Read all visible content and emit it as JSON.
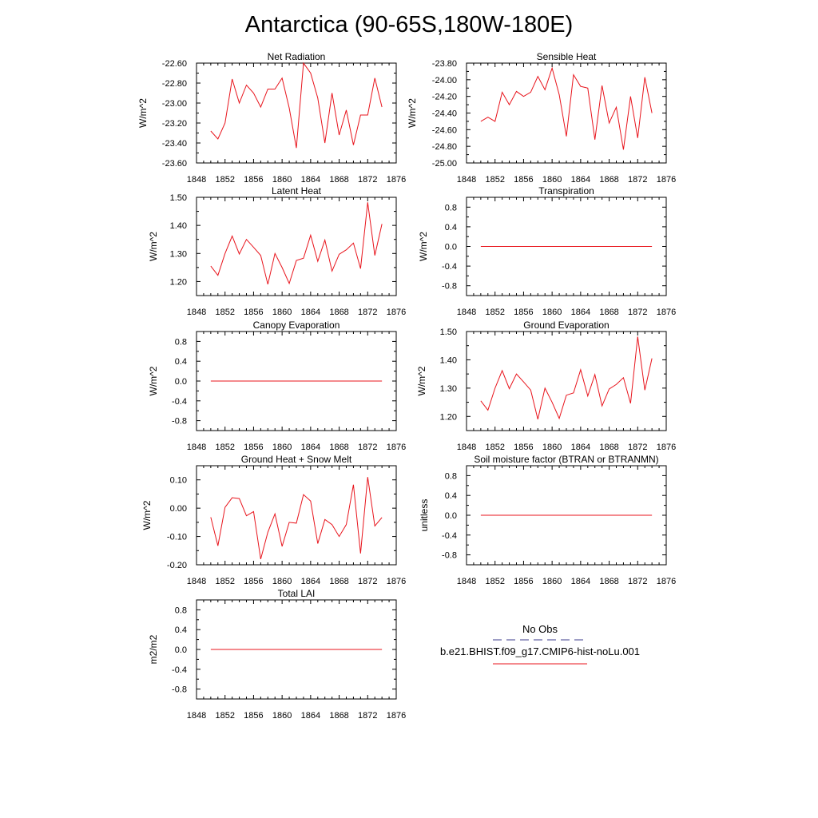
{
  "figure": {
    "title": "Antarctica (90-65S,180W-180E)"
  },
  "colors": {
    "model_line": "#e8141c",
    "obs_line": "#3c3c8c",
    "axis": "#000000"
  },
  "legend": {
    "obs_label": "No Obs",
    "model_label": "b.e21.BHIST.f09_g17.CMIP6-hist-noLu.001"
  },
  "chart_data": [
    {
      "type": "line",
      "title": "Net Radiation",
      "ylabel": "W/m^2",
      "xlim": [
        1848,
        1876
      ],
      "xticks": [
        1848,
        1852,
        1856,
        1860,
        1864,
        1868,
        1872,
        1876
      ],
      "ylim": [
        -23.6,
        -22.6
      ],
      "yticks": [
        "-22.60",
        "-22.80",
        "-23.00",
        "-23.20",
        "-23.40",
        "-23.60"
      ],
      "x": [
        1850,
        1851,
        1852,
        1853,
        1854,
        1855,
        1856,
        1857,
        1858,
        1859,
        1860,
        1861,
        1862,
        1863,
        1864,
        1865,
        1866,
        1867,
        1868,
        1869,
        1870,
        1871,
        1872,
        1873,
        1874
      ],
      "series": [
        {
          "values": [
            -23.28,
            -23.36,
            -23.2,
            -22.76,
            -23.0,
            -22.82,
            -22.9,
            -23.04,
            -22.86,
            -22.86,
            -22.75,
            -23.05,
            -23.45,
            -22.6,
            -22.7,
            -22.95,
            -23.4,
            -22.9,
            -23.32,
            -23.07,
            -23.42,
            -23.12,
            -23.12,
            -22.75,
            -23.04
          ]
        }
      ]
    },
    {
      "type": "line",
      "title": "Sensible Heat",
      "ylabel": "W/m^2",
      "xlim": [
        1848,
        1876
      ],
      "xticks": [
        1848,
        1852,
        1856,
        1860,
        1864,
        1868,
        1872,
        1876
      ],
      "ylim": [
        -25.0,
        -23.8
      ],
      "yticks": [
        "-23.80",
        "-24.00",
        "-24.20",
        "-24.40",
        "-24.60",
        "-24.80",
        "-25.00"
      ],
      "x": [
        1850,
        1851,
        1852,
        1853,
        1854,
        1855,
        1856,
        1857,
        1858,
        1859,
        1860,
        1861,
        1862,
        1863,
        1864,
        1865,
        1866,
        1867,
        1868,
        1869,
        1870,
        1871,
        1872,
        1873,
        1874
      ],
      "series": [
        {
          "values": [
            -24.5,
            -24.45,
            -24.5,
            -24.15,
            -24.3,
            -24.14,
            -24.2,
            -24.15,
            -23.96,
            -24.12,
            -23.86,
            -24.18,
            -24.68,
            -23.94,
            -24.08,
            -24.1,
            -24.72,
            -24.07,
            -24.52,
            -24.33,
            -24.84,
            -24.2,
            -24.7,
            -23.97,
            -24.4
          ]
        }
      ]
    },
    {
      "type": "line",
      "title": "Latent Heat",
      "ylabel": "W/m^2",
      "xlim": [
        1848,
        1876
      ],
      "xticks": [
        1848,
        1852,
        1856,
        1860,
        1864,
        1868,
        1872,
        1876
      ],
      "ylim": [
        1.15,
        1.5
      ],
      "yticks": [
        "1.50",
        "1.40",
        "1.30",
        "1.20"
      ],
      "x": [
        1850,
        1851,
        1852,
        1853,
        1854,
        1855,
        1856,
        1857,
        1858,
        1859,
        1860,
        1861,
        1862,
        1863,
        1864,
        1865,
        1866,
        1867,
        1868,
        1869,
        1870,
        1871,
        1872,
        1873,
        1874
      ],
      "series": [
        {
          "values": [
            1.255,
            1.222,
            1.3,
            1.362,
            1.298,
            1.35,
            1.322,
            1.293,
            1.19,
            1.3,
            1.25,
            1.193,
            1.275,
            1.283,
            1.365,
            1.272,
            1.348,
            1.237,
            1.297,
            1.313,
            1.337,
            1.246,
            1.482,
            1.293,
            1.405
          ]
        }
      ]
    },
    {
      "type": "line",
      "title": "Transpiration",
      "ylabel": "W/m^2",
      "xlim": [
        1848,
        1876
      ],
      "xticks": [
        1848,
        1852,
        1856,
        1860,
        1864,
        1868,
        1872,
        1876
      ],
      "ylim": [
        -1.0,
        1.0
      ],
      "yticks": [
        "0.8",
        "0.4",
        "0.0",
        "-0.4",
        "-0.8"
      ],
      "x": [
        1850,
        1874
      ],
      "series": [
        {
          "values": [
            0.0,
            0.0
          ]
        }
      ]
    },
    {
      "type": "line",
      "title": "Canopy Evaporation",
      "ylabel": "W/m^2",
      "xlim": [
        1848,
        1876
      ],
      "xticks": [
        1848,
        1852,
        1856,
        1860,
        1864,
        1868,
        1872,
        1876
      ],
      "ylim": [
        -1.0,
        1.0
      ],
      "yticks": [
        "0.8",
        "0.4",
        "0.0",
        "-0.4",
        "-0.8"
      ],
      "x": [
        1850,
        1874
      ],
      "series": [
        {
          "values": [
            0.0,
            0.0
          ]
        }
      ]
    },
    {
      "type": "line",
      "title": "Ground Evaporation",
      "ylabel": "W/m^2",
      "xlim": [
        1848,
        1876
      ],
      "xticks": [
        1848,
        1852,
        1856,
        1860,
        1864,
        1868,
        1872,
        1876
      ],
      "ylim": [
        1.15,
        1.5
      ],
      "yticks": [
        "1.50",
        "1.40",
        "1.30",
        "1.20"
      ],
      "x": [
        1850,
        1851,
        1852,
        1853,
        1854,
        1855,
        1856,
        1857,
        1858,
        1859,
        1860,
        1861,
        1862,
        1863,
        1864,
        1865,
        1866,
        1867,
        1868,
        1869,
        1870,
        1871,
        1872,
        1873,
        1874
      ],
      "series": [
        {
          "values": [
            1.255,
            1.222,
            1.3,
            1.362,
            1.298,
            1.35,
            1.322,
            1.293,
            1.19,
            1.3,
            1.25,
            1.193,
            1.275,
            1.283,
            1.365,
            1.272,
            1.348,
            1.237,
            1.297,
            1.313,
            1.337,
            1.246,
            1.482,
            1.293,
            1.405
          ]
        }
      ]
    },
    {
      "type": "line",
      "title": "Ground Heat + Snow Melt",
      "ylabel": "W/m^2",
      "xlim": [
        1848,
        1876
      ],
      "xticks": [
        1848,
        1852,
        1856,
        1860,
        1864,
        1868,
        1872,
        1876
      ],
      "ylim": [
        -0.2,
        0.15
      ],
      "yticks": [
        "0.10",
        "0.00",
        "-0.10",
        "-0.20"
      ],
      "x": [
        1850,
        1851,
        1852,
        1853,
        1854,
        1855,
        1856,
        1857,
        1858,
        1859,
        1860,
        1861,
        1862,
        1863,
        1864,
        1865,
        1866,
        1867,
        1868,
        1869,
        1870,
        1871,
        1872,
        1873,
        1874
      ],
      "series": [
        {
          "values": [
            -0.032,
            -0.133,
            0.003,
            0.037,
            0.034,
            -0.027,
            -0.012,
            -0.18,
            -0.085,
            -0.02,
            -0.135,
            -0.05,
            -0.053,
            0.048,
            0.025,
            -0.125,
            -0.04,
            -0.058,
            -0.1,
            -0.058,
            0.083,
            -0.16,
            0.11,
            -0.063,
            -0.033
          ]
        }
      ]
    },
    {
      "type": "line",
      "title": "Soil moisture factor (BTRAN or BTRANMN)",
      "ylabel": "unitless",
      "xlim": [
        1848,
        1876
      ],
      "xticks": [
        1848,
        1852,
        1856,
        1860,
        1864,
        1868,
        1872,
        1876
      ],
      "ylim": [
        -1.0,
        1.0
      ],
      "yticks": [
        "0.8",
        "0.4",
        "0.0",
        "-0.4",
        "-0.8"
      ],
      "x": [
        1850,
        1874
      ],
      "series": [
        {
          "values": [
            0.0,
            0.0
          ]
        }
      ]
    },
    {
      "type": "line",
      "title": "Total LAI",
      "ylabel": "m2/m2",
      "xlim": [
        1848,
        1876
      ],
      "xticks": [
        1848,
        1852,
        1856,
        1860,
        1864,
        1868,
        1872,
        1876
      ],
      "ylim": [
        -1.0,
        1.0
      ],
      "yticks": [
        "0.8",
        "0.4",
        "0.0",
        "-0.4",
        "-0.8"
      ],
      "x": [
        1850,
        1874
      ],
      "series": [
        {
          "values": [
            0.0,
            0.0
          ]
        }
      ]
    }
  ]
}
